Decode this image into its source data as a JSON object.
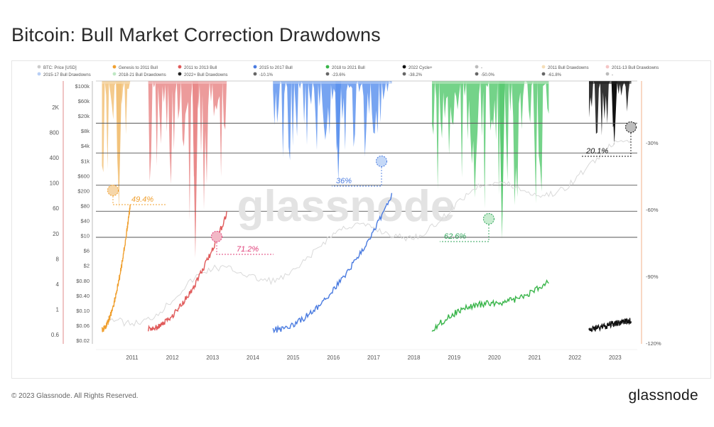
{
  "header": {
    "title": "Bitcoin: Bull Market Correction Drawdowns"
  },
  "footer": {
    "copyright": "© 2023 Glassnode. All Rights Reserved.",
    "brand": "glassnode"
  },
  "watermark": "glassnode",
  "chart_data": {
    "type": "line",
    "title": "Bitcoin: Bull Market Correction Drawdowns",
    "legend": {
      "placement": "top",
      "items": [
        {
          "label": "BTC: Price [USD]",
          "color": "#cccccc"
        },
        {
          "label": "Genesis to 2011 Bull",
          "color": "#f0a030"
        },
        {
          "label": "2011 to 2013 Bull",
          "color": "#e05a5a"
        },
        {
          "label": "2015 to 2017 Bull",
          "color": "#4a7be0"
        },
        {
          "label": "2018 to 2021 Bull",
          "color": "#39b54a"
        },
        {
          "label": "2022 Cycle+",
          "color": "#111111"
        },
        {
          "label": "-",
          "color": "#bbbbbb"
        },
        {
          "label": "2011 Bull Drawdowns",
          "color": "#f5deb8"
        },
        {
          "label": "2011-13 Bull Drawdowns",
          "color": "#f5c6c6"
        },
        {
          "label": "2015-17 Bull Drawdowns",
          "color": "#b8cff5"
        },
        {
          "label": "2018-21 Bull Drawdowns",
          "color": "#bfe8c4"
        },
        {
          "label": "2022+ Bull Drawdowns",
          "color": "#222222"
        },
        {
          "label": "-10.1%",
          "color": "#666666"
        },
        {
          "label": "-23.6%",
          "color": "#666666"
        },
        {
          "label": "-38.2%",
          "color": "#666666"
        },
        {
          "label": "-50.0%",
          "color": "#666666"
        },
        {
          "label": "-61.8%",
          "color": "#666666"
        },
        {
          "label": "-",
          "color": "#bbbbbb"
        }
      ]
    },
    "x_ticks": [
      "2011",
      "2012",
      "2013",
      "2014",
      "2015",
      "2016",
      "2017",
      "2018",
      "2019",
      "2020",
      "2021",
      "2022",
      "2023"
    ],
    "y_left_outer_ticks": [
      "2K",
      "800",
      "400",
      "100",
      "60",
      "20",
      "8",
      "4",
      "1",
      "0.6"
    ],
    "y_left_inner_ticks": [
      "$100k",
      "$60k",
      "$20k",
      "$8k",
      "$4k",
      "$1k",
      "$600",
      "$200",
      "$80",
      "$40",
      "$10",
      "$6",
      "$2",
      "$0.80",
      "$0.40",
      "$0.10",
      "$0.06",
      "$0.02"
    ],
    "y_right_ticks": [
      "-30%",
      "-60%",
      "-90%",
      "-120%"
    ],
    "drawdown_levels_pct": [
      -10.1,
      -23.6,
      -38.2,
      -50.0,
      -61.8
    ],
    "annotations": [
      {
        "label": "49.4%",
        "series": "Genesis to 2011 Bull",
        "color": "#f0a030"
      },
      {
        "label": "71.2%",
        "series": "2011 to 2013 Bull",
        "color": "#e0407a"
      },
      {
        "label": "36%",
        "series": "2015 to 2017 Bull",
        "color": "#4a7be0"
      },
      {
        "label": "62.6%",
        "series": "2018 to 2021 Bull",
        "color": "#2fa55a"
      },
      {
        "label": "20.1%",
        "series": "2022 Cycle+",
        "color": "#111111"
      }
    ],
    "series": [
      {
        "name": "Genesis to 2011 Bull",
        "color": "#f0a030",
        "x_start": 2010.75,
        "x_end": 2011.45,
        "relative_gain_start": 1,
        "relative_gain_end": 75,
        "max_drawdown_pct": 49.4
      },
      {
        "name": "2011 to 2013 Bull",
        "color": "#e05a5a",
        "x_start": 2011.9,
        "x_end": 2013.85,
        "relative_gain_start": 1,
        "relative_gain_end": 90,
        "max_drawdown_pct": 71.2
      },
      {
        "name": "2015 to 2017 Bull",
        "color": "#4a7be0",
        "x_start": 2015.0,
        "x_end": 2017.95,
        "relative_gain_start": 1,
        "relative_gain_end": 110,
        "max_drawdown_pct": 36
      },
      {
        "name": "2018 to 2021 Bull",
        "color": "#39b54a",
        "x_start": 2018.95,
        "x_end": 2021.85,
        "relative_gain_start": 1,
        "relative_gain_end": 20,
        "max_drawdown_pct": 62.6
      },
      {
        "name": "2022 Cycle+",
        "color": "#111111",
        "x_start": 2022.85,
        "x_end": 2023.9,
        "relative_gain_start": 1,
        "relative_gain_end": 1.9,
        "max_drawdown_pct": 20.1
      }
    ]
  }
}
